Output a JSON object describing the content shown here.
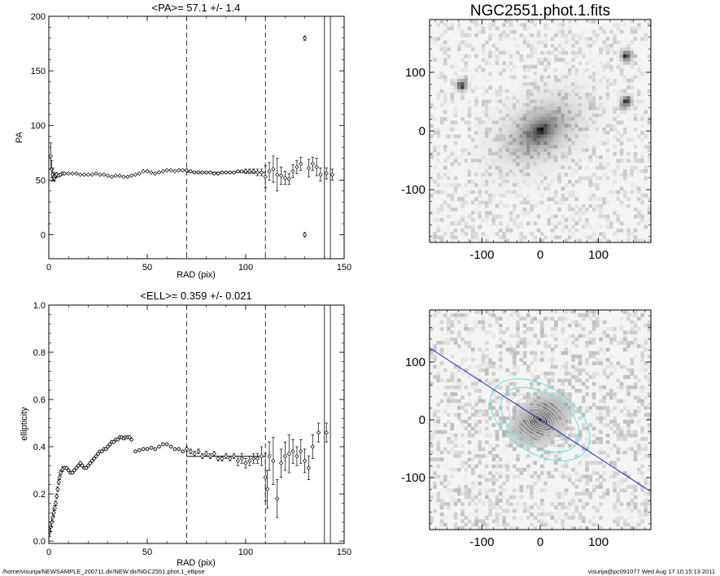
{
  "footer": {
    "left": "/home/visurija/NEWSAMPLE_200711.dir/NEW.dir/NGC2551.phot.1_ellipse",
    "right": "visurija@pc091077  Wed Aug 17 10:15:13 2011"
  },
  "chart_data": [
    {
      "type": "scatter",
      "title": "<PA>=  57.1 +/-   1.4",
      "xlabel": "RAD (pix)",
      "ylabel": "PA",
      "xlim": [
        0,
        150
      ],
      "ylim": [
        -22,
        200
      ],
      "xticks": [
        0,
        50,
        100,
        150
      ],
      "yticks": [
        0,
        50,
        100,
        150,
        200
      ],
      "vlines_dashed": [
        70,
        110
      ],
      "vlines_solid": [
        140,
        143
      ],
      "mean_value": 57.1,
      "mean_range": [
        70,
        110
      ],
      "points": [
        [
          1,
          72,
          12
        ],
        [
          1.5,
          60,
          8
        ],
        [
          2,
          55,
          6
        ],
        [
          2.5,
          53,
          4
        ],
        [
          3,
          52,
          3
        ],
        [
          3.5,
          54,
          2
        ],
        [
          4,
          55,
          2
        ],
        [
          5,
          54,
          1
        ],
        [
          6,
          55,
          1
        ],
        [
          7,
          56,
          1
        ],
        [
          8,
          56,
          1
        ],
        [
          10,
          56,
          0.5
        ],
        [
          12,
          56,
          0.5
        ],
        [
          14,
          56,
          0.5
        ],
        [
          16,
          55,
          0.5
        ],
        [
          18,
          55,
          0.5
        ],
        [
          20,
          55,
          0.5
        ],
        [
          22,
          55,
          0.5
        ],
        [
          24,
          56,
          0.5
        ],
        [
          26,
          55,
          0.5
        ],
        [
          28,
          55,
          0.5
        ],
        [
          30,
          54,
          0.5
        ],
        [
          32,
          53,
          0.5
        ],
        [
          34,
          54,
          0.5
        ],
        [
          36,
          54,
          0.5
        ],
        [
          38,
          53,
          0.5
        ],
        [
          40,
          53,
          0.5
        ],
        [
          42,
          54,
          0.5
        ],
        [
          44,
          55,
          0.5
        ],
        [
          46,
          56,
          0.5
        ],
        [
          48,
          58,
          0.5
        ],
        [
          50,
          58,
          0.5
        ],
        [
          52,
          57,
          0.5
        ],
        [
          54,
          56,
          0.5
        ],
        [
          56,
          57,
          0.5
        ],
        [
          58,
          58,
          0.5
        ],
        [
          60,
          59,
          0.5
        ],
        [
          62,
          59,
          0.5
        ],
        [
          64,
          58,
          0.5
        ],
        [
          66,
          59,
          0.5
        ],
        [
          68,
          59,
          0.5
        ],
        [
          70,
          59,
          1
        ],
        [
          72,
          58,
          1
        ],
        [
          74,
          57,
          1
        ],
        [
          76,
          57,
          1
        ],
        [
          78,
          57,
          1
        ],
        [
          80,
          57,
          1
        ],
        [
          82,
          57,
          1
        ],
        [
          84,
          56,
          1
        ],
        [
          86,
          56,
          1
        ],
        [
          88,
          57,
          1
        ],
        [
          90,
          57,
          1
        ],
        [
          92,
          57,
          1
        ],
        [
          94,
          57,
          1
        ],
        [
          96,
          58,
          1
        ],
        [
          98,
          58,
          1
        ],
        [
          100,
          58,
          2
        ],
        [
          102,
          58,
          2
        ],
        [
          104,
          58,
          2
        ],
        [
          106,
          57,
          3
        ],
        [
          108,
          57,
          3
        ],
        [
          110,
          53,
          10
        ],
        [
          112,
          58,
          8
        ],
        [
          114,
          60,
          12
        ],
        [
          116,
          55,
          15
        ],
        [
          118,
          54,
          8
        ],
        [
          120,
          52,
          6
        ],
        [
          122,
          51,
          5
        ],
        [
          124,
          58,
          6
        ],
        [
          126,
          62,
          6
        ],
        [
          128,
          65,
          6
        ],
        [
          130,
          0,
          2
        ],
        [
          130,
          180,
          2
        ],
        [
          132,
          61,
          8
        ],
        [
          134,
          65,
          6
        ],
        [
          136,
          62,
          8
        ],
        [
          138,
          55,
          6
        ],
        [
          141,
          56,
          5
        ],
        [
          144,
          55,
          5
        ]
      ]
    },
    {
      "type": "scatter",
      "title": "<ELL>= 0.359 +/-  0.021",
      "xlabel": "RAD (pix)",
      "ylabel": "ellipticity",
      "xlim": [
        0,
        150
      ],
      "ylim": [
        -0.01,
        1.0
      ],
      "xticks": [
        0,
        50,
        100,
        150
      ],
      "yticks": [
        0.0,
        0.2,
        0.4,
        0.6,
        0.8,
        1.0
      ],
      "vlines_dashed": [
        70,
        110
      ],
      "vlines_solid": [
        140,
        143
      ],
      "mean_value": 0.359,
      "mean_range": [
        70,
        110
      ],
      "points": [
        [
          0.5,
          0.04,
          0.02
        ],
        [
          1,
          0.06,
          0.02
        ],
        [
          1.5,
          0.08,
          0.02
        ],
        [
          2,
          0.1,
          0.015
        ],
        [
          2.5,
          0.12,
          0.015
        ],
        [
          3,
          0.14,
          0.01
        ],
        [
          3.5,
          0.16,
          0.01
        ],
        [
          4,
          0.19,
          0.01
        ],
        [
          4.5,
          0.22,
          0.01
        ],
        [
          5,
          0.25,
          0.01
        ],
        [
          5.5,
          0.27,
          0.01
        ],
        [
          6,
          0.29,
          0.01
        ],
        [
          7,
          0.305,
          0.01
        ],
        [
          8,
          0.31,
          0.005
        ],
        [
          9,
          0.31,
          0.005
        ],
        [
          10,
          0.3,
          0.005
        ],
        [
          11,
          0.29,
          0.005
        ],
        [
          12,
          0.29,
          0.005
        ],
        [
          13,
          0.3,
          0.005
        ],
        [
          14,
          0.31,
          0.005
        ],
        [
          15,
          0.32,
          0.005
        ],
        [
          16,
          0.33,
          0.005
        ],
        [
          17,
          0.32,
          0.005
        ],
        [
          18,
          0.31,
          0.005
        ],
        [
          19,
          0.31,
          0.005
        ],
        [
          20,
          0.32,
          0.005
        ],
        [
          21,
          0.33,
          0.005
        ],
        [
          22,
          0.34,
          0.005
        ],
        [
          23,
          0.35,
          0.005
        ],
        [
          24,
          0.36,
          0.005
        ],
        [
          25,
          0.37,
          0.005
        ],
        [
          26,
          0.38,
          0.005
        ],
        [
          27,
          0.38,
          0.005
        ],
        [
          28,
          0.39,
          0.005
        ],
        [
          29,
          0.39,
          0.005
        ],
        [
          30,
          0.4,
          0.005
        ],
        [
          31,
          0.41,
          0.005
        ],
        [
          32,
          0.42,
          0.005
        ],
        [
          33,
          0.42,
          0.005
        ],
        [
          34,
          0.43,
          0.005
        ],
        [
          35,
          0.43,
          0.005
        ],
        [
          36,
          0.44,
          0.005
        ],
        [
          37,
          0.44,
          0.005
        ],
        [
          38,
          0.435,
          0.005
        ],
        [
          39,
          0.44,
          0.005
        ],
        [
          40,
          0.44,
          0.005
        ],
        [
          41,
          0.44,
          0.005
        ],
        [
          42,
          0.43,
          0.005
        ],
        [
          44,
          0.38,
          0.005
        ],
        [
          46,
          0.385,
          0.005
        ],
        [
          48,
          0.39,
          0.005
        ],
        [
          50,
          0.39,
          0.005
        ],
        [
          52,
          0.395,
          0.005
        ],
        [
          54,
          0.39,
          0.005
        ],
        [
          56,
          0.4,
          0.005
        ],
        [
          58,
          0.41,
          0.005
        ],
        [
          60,
          0.41,
          0.005
        ],
        [
          62,
          0.4,
          0.005
        ],
        [
          64,
          0.39,
          0.005
        ],
        [
          66,
          0.39,
          0.005
        ],
        [
          68,
          0.38,
          0.005
        ],
        [
          70,
          0.39,
          0.01
        ],
        [
          72,
          0.38,
          0.01
        ],
        [
          74,
          0.37,
          0.01
        ],
        [
          76,
          0.38,
          0.01
        ],
        [
          78,
          0.36,
          0.01
        ],
        [
          80,
          0.37,
          0.01
        ],
        [
          82,
          0.36,
          0.01
        ],
        [
          84,
          0.37,
          0.01
        ],
        [
          86,
          0.35,
          0.01
        ],
        [
          88,
          0.35,
          0.01
        ],
        [
          90,
          0.36,
          0.01
        ],
        [
          92,
          0.35,
          0.01
        ],
        [
          94,
          0.36,
          0.01
        ],
        [
          96,
          0.34,
          0.02
        ],
        [
          98,
          0.35,
          0.02
        ],
        [
          100,
          0.33,
          0.02
        ],
        [
          102,
          0.34,
          0.02
        ],
        [
          104,
          0.35,
          0.02
        ],
        [
          106,
          0.35,
          0.02
        ],
        [
          108,
          0.36,
          0.04
        ],
        [
          110,
          0.27,
          0.1
        ],
        [
          111,
          0.22,
          0.08
        ],
        [
          112,
          0.36,
          0.06
        ],
        [
          114,
          0.34,
          0.1
        ],
        [
          116,
          0.18,
          0.08
        ],
        [
          118,
          0.33,
          0.06
        ],
        [
          120,
          0.36,
          0.06
        ],
        [
          122,
          0.37,
          0.08
        ],
        [
          124,
          0.38,
          0.05
        ],
        [
          126,
          0.36,
          0.04
        ],
        [
          128,
          0.38,
          0.05
        ],
        [
          130,
          0.34,
          0.05
        ],
        [
          132,
          0.31,
          0.05
        ],
        [
          134,
          0.4,
          0.05
        ],
        [
          137,
          0.46,
          0.04
        ],
        [
          141,
          0.46,
          0.04
        ]
      ]
    },
    {
      "type": "heatmap",
      "title": "NGC2551.phot.1.fits",
      "xlim": [
        -190,
        190
      ],
      "ylim": [
        -190,
        190
      ],
      "xticks": [
        -100,
        0,
        100
      ],
      "yticks": [
        -100,
        0,
        100
      ],
      "galaxy": {
        "x": 0,
        "y": 0,
        "pa_deg": 57.1,
        "ell": 0.359
      },
      "stars": [
        [
          -135,
          78
        ],
        [
          148,
          128
        ],
        [
          148,
          50
        ]
      ]
    },
    {
      "type": "heatmap",
      "title": "",
      "xlim": [
        -190,
        190
      ],
      "ylim": [
        -190,
        190
      ],
      "xticks": [
        -100,
        0,
        100
      ],
      "yticks": [
        -100,
        0,
        100
      ],
      "galaxy": {
        "x": 0,
        "y": 0,
        "pa_deg": 57.1,
        "ell": 0.359
      },
      "contours_cyan": [
        75,
        95
      ],
      "contours_gray": [
        6,
        10,
        15,
        20,
        26,
        32,
        40,
        50,
        60
      ],
      "major_axis_color": "#2222bb",
      "contour_color": "#66dddd"
    }
  ]
}
